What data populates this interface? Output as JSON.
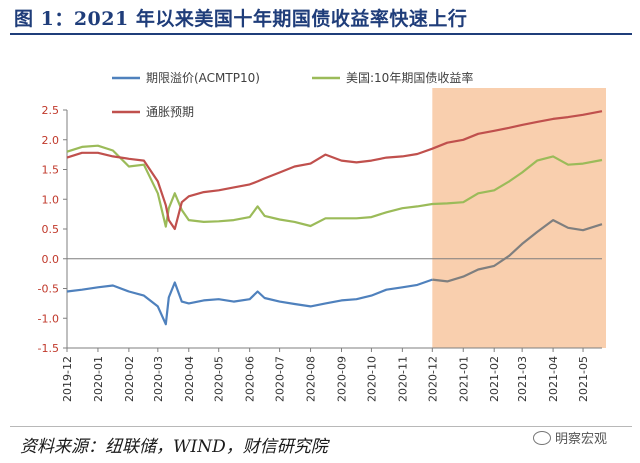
{
  "figure_title": "图 1：2021 年以来美国十年期国债收益率快速上行",
  "source_text": "资料来源：纽联储，WIND，财信研究院",
  "watermark_text": "明察宏观",
  "colors": {
    "title": "#1f3d7a",
    "tick_labels": "#c0392b",
    "highlight": "#f9cfae"
  },
  "chart_data": {
    "type": "line",
    "title": "",
    "xlabel": "",
    "ylabel": "",
    "ylim": [
      -1.5,
      2.5
    ],
    "y_ticks": [
      "2.5",
      "2.0",
      "1.5",
      "1.0",
      "0.5",
      "0.0",
      "-0.5",
      "-1.0",
      "-1.5"
    ],
    "x_ticks": [
      "2019-12",
      "2020-01",
      "2020-02",
      "2020-03",
      "2020-04",
      "2020-05",
      "2020-06",
      "2020-07",
      "2020-08",
      "2020-09",
      "2020-10",
      "2020-11",
      "2020-12",
      "2021-01",
      "2021-02",
      "2021-03",
      "2021-04",
      "2021-05"
    ],
    "x_range": [
      "2019-12",
      "2021-05-20"
    ],
    "highlight_range": [
      "2020-12",
      "2021-05-20"
    ],
    "zero_line": 0,
    "legend_position": "top-left",
    "series": [
      {
        "name": "期限溢价(ACMTP10)",
        "color": "#4f81bd",
        "color_in_highlight": "#7f7f7f",
        "points": [
          [
            "2019-12",
            -0.55
          ],
          [
            "2019-12-16",
            -0.52
          ],
          [
            "2020-01",
            -0.48
          ],
          [
            "2020-01-16",
            -0.45
          ],
          [
            "2020-02",
            -0.55
          ],
          [
            "2020-02-16",
            -0.62
          ],
          [
            "2020-03",
            -0.8
          ],
          [
            "2020-03-09",
            -1.1
          ],
          [
            "2020-03-12",
            -0.65
          ],
          [
            "2020-03-18",
            -0.4
          ],
          [
            "2020-03-25",
            -0.72
          ],
          [
            "2020-04",
            -0.75
          ],
          [
            "2020-04-16",
            -0.7
          ],
          [
            "2020-05",
            -0.68
          ],
          [
            "2020-05-16",
            -0.72
          ],
          [
            "2020-06",
            -0.68
          ],
          [
            "2020-06-09",
            -0.55
          ],
          [
            "2020-06-16",
            -0.66
          ],
          [
            "2020-07",
            -0.72
          ],
          [
            "2020-07-16",
            -0.76
          ],
          [
            "2020-08",
            -0.8
          ],
          [
            "2020-08-16",
            -0.75
          ],
          [
            "2020-09",
            -0.7
          ],
          [
            "2020-09-16",
            -0.68
          ],
          [
            "2020-10",
            -0.62
          ],
          [
            "2020-10-16",
            -0.52
          ],
          [
            "2020-11",
            -0.48
          ],
          [
            "2020-11-16",
            -0.44
          ],
          [
            "2020-12",
            -0.35
          ],
          [
            "2020-12-16",
            -0.38
          ],
          [
            "2021-01",
            -0.3
          ],
          [
            "2021-01-16",
            -0.18
          ],
          [
            "2021-02",
            -0.12
          ],
          [
            "2021-02-16",
            0.05
          ],
          [
            "2021-03",
            0.25
          ],
          [
            "2021-03-16",
            0.45
          ],
          [
            "2021-04",
            0.65
          ],
          [
            "2021-04-16",
            0.52
          ],
          [
            "2021-05",
            0.48
          ],
          [
            "2021-05-20",
            0.58
          ]
        ]
      },
      {
        "name": "美国:10年期国债收益率",
        "color": "#9bbb59",
        "points": [
          [
            "2019-12",
            1.8
          ],
          [
            "2019-12-16",
            1.88
          ],
          [
            "2020-01",
            1.9
          ],
          [
            "2020-01-16",
            1.82
          ],
          [
            "2020-02",
            1.55
          ],
          [
            "2020-02-16",
            1.58
          ],
          [
            "2020-03",
            1.1
          ],
          [
            "2020-03-09",
            0.54
          ],
          [
            "2020-03-12",
            0.85
          ],
          [
            "2020-03-18",
            1.1
          ],
          [
            "2020-03-25",
            0.82
          ],
          [
            "2020-04",
            0.65
          ],
          [
            "2020-04-16",
            0.62
          ],
          [
            "2020-05",
            0.63
          ],
          [
            "2020-05-16",
            0.65
          ],
          [
            "2020-06",
            0.7
          ],
          [
            "2020-06-09",
            0.88
          ],
          [
            "2020-06-16",
            0.72
          ],
          [
            "2020-07",
            0.66
          ],
          [
            "2020-07-16",
            0.62
          ],
          [
            "2020-08",
            0.55
          ],
          [
            "2020-08-16",
            0.68
          ],
          [
            "2020-09",
            0.68
          ],
          [
            "2020-09-16",
            0.68
          ],
          [
            "2020-10",
            0.7
          ],
          [
            "2020-10-16",
            0.78
          ],
          [
            "2020-11",
            0.85
          ],
          [
            "2020-11-16",
            0.88
          ],
          [
            "2020-12",
            0.92
          ],
          [
            "2020-12-16",
            0.93
          ],
          [
            "2021-01",
            0.95
          ],
          [
            "2021-01-16",
            1.1
          ],
          [
            "2021-02",
            1.15
          ],
          [
            "2021-02-16",
            1.3
          ],
          [
            "2021-03",
            1.45
          ],
          [
            "2021-03-16",
            1.65
          ],
          [
            "2021-04",
            1.72
          ],
          [
            "2021-04-16",
            1.58
          ],
          [
            "2021-05",
            1.6
          ],
          [
            "2021-05-20",
            1.66
          ]
        ]
      },
      {
        "name": "通胀预期",
        "color": "#c0504d",
        "points": [
          [
            "2019-12",
            1.7
          ],
          [
            "2019-12-16",
            1.78
          ],
          [
            "2020-01",
            1.78
          ],
          [
            "2020-01-16",
            1.72
          ],
          [
            "2020-02",
            1.68
          ],
          [
            "2020-02-16",
            1.65
          ],
          [
            "2020-03",
            1.3
          ],
          [
            "2020-03-09",
            0.9
          ],
          [
            "2020-03-12",
            0.65
          ],
          [
            "2020-03-18",
            0.5
          ],
          [
            "2020-03-25",
            0.95
          ],
          [
            "2020-04",
            1.05
          ],
          [
            "2020-04-16",
            1.12
          ],
          [
            "2020-05",
            1.15
          ],
          [
            "2020-05-16",
            1.2
          ],
          [
            "2020-06",
            1.25
          ],
          [
            "2020-06-09",
            1.3
          ],
          [
            "2020-06-16",
            1.35
          ],
          [
            "2020-07",
            1.45
          ],
          [
            "2020-07-16",
            1.55
          ],
          [
            "2020-08",
            1.6
          ],
          [
            "2020-08-16",
            1.75
          ],
          [
            "2020-09",
            1.65
          ],
          [
            "2020-09-16",
            1.62
          ],
          [
            "2020-10",
            1.65
          ],
          [
            "2020-10-16",
            1.7
          ],
          [
            "2020-11",
            1.72
          ],
          [
            "2020-11-16",
            1.76
          ],
          [
            "2020-12",
            1.85
          ],
          [
            "2020-12-16",
            1.95
          ],
          [
            "2021-01",
            2.0
          ],
          [
            "2021-01-16",
            2.1
          ],
          [
            "2021-02",
            2.15
          ],
          [
            "2021-02-16",
            2.2
          ],
          [
            "2021-03",
            2.25
          ],
          [
            "2021-03-16",
            2.3
          ],
          [
            "2021-04",
            2.35
          ],
          [
            "2021-04-16",
            2.38
          ],
          [
            "2021-05",
            2.42
          ],
          [
            "2021-05-20",
            2.48
          ]
        ]
      }
    ]
  }
}
